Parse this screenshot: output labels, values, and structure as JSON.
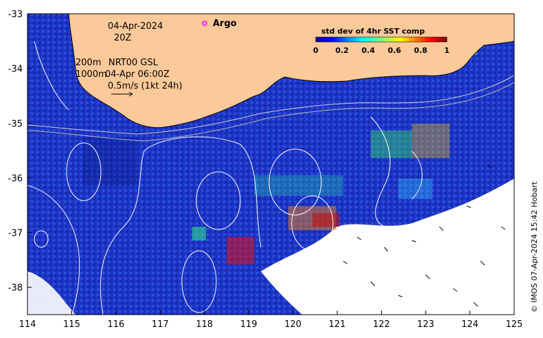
{
  "map": {
    "date": "04-Apr-2024",
    "time": "20Z",
    "argo_label": "Argo",
    "depth_line_1": "200m",
    "depth_line_2": "1000m",
    "nrt_label": "NRT00 GSL",
    "nrt_time": "04-Apr 06:00Z",
    "scale_label": "0.5m/s (1kt 24h)",
    "credit": "© IMOS 07-Apr-2024 15:42 Hobart",
    "lon_range": [
      114,
      125
    ],
    "lat_range": [
      -38.5,
      -33
    ],
    "lon_ticks": [
      "114",
      "115",
      "116",
      "117",
      "118",
      "119",
      "120",
      "121",
      "122",
      "123",
      "124",
      "125"
    ],
    "lat_ticks": [
      "-33",
      "-34",
      "-35",
      "-36",
      "-37",
      "-38"
    ],
    "colors": {
      "land": "#fcc99a",
      "ocean_field": "#1f36c8",
      "argo_marker": "#ff00ff"
    }
  },
  "colorbar": {
    "title": "std dev of 4hr SST comp",
    "ticks": [
      "0",
      "0.2",
      "0.4",
      "0.6",
      "0.8",
      "1"
    ],
    "range": [
      0,
      1
    ]
  }
}
